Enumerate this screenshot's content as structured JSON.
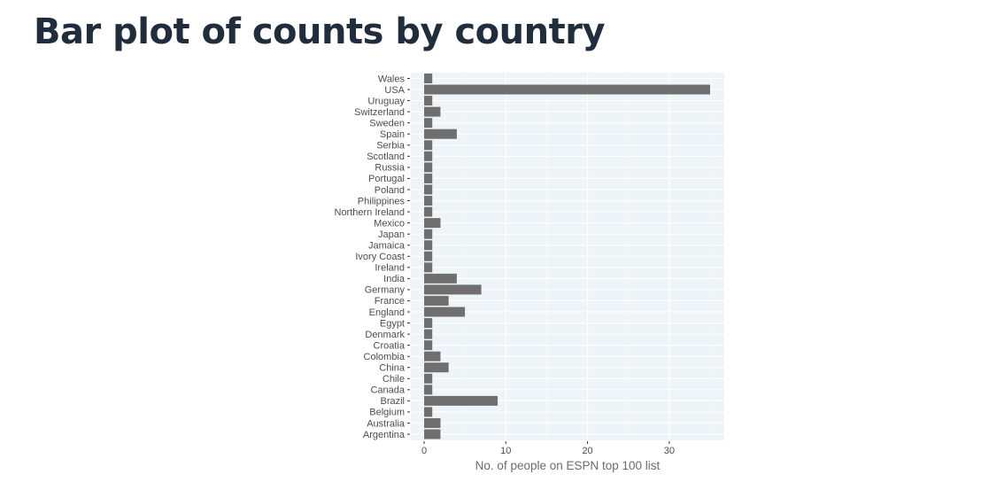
{
  "slide": {
    "title": "Bar plot of counts by country"
  },
  "colors": {
    "title": "#1f2d3d",
    "panel_background": "#eef4f8",
    "gridline": "#ffffff",
    "bar_fill": "#6f6f6f",
    "axis_text": "#4d4d4d",
    "axis_title": "#6b6b6b"
  },
  "chart_data": {
    "type": "bar",
    "orientation": "horizontal",
    "title": "",
    "xlabel": "No. of people on ESPN top 100 list",
    "ylabel": "",
    "xlim": [
      0,
      36.75
    ],
    "x_ticks": [
      0,
      10,
      20,
      30
    ],
    "grid": true,
    "legend": "none",
    "categories": [
      "Wales",
      "USA",
      "Uruguay",
      "Switzerland",
      "Sweden",
      "Spain",
      "Serbia",
      "Scotland",
      "Russia",
      "Portugal",
      "Poland",
      "Philippines",
      "Northern Ireland",
      "Mexico",
      "Japan",
      "Jamaica",
      "Ivory Coast",
      "Ireland",
      "India",
      "Germany",
      "France",
      "England",
      "Egypt",
      "Denmark",
      "Croatia",
      "Colombia",
      "China",
      "Chile",
      "Canada",
      "Brazil",
      "Belgium",
      "Australia",
      "Argentina"
    ],
    "values": [
      1,
      35,
      1,
      2,
      1,
      4,
      1,
      1,
      1,
      1,
      1,
      1,
      1,
      2,
      1,
      1,
      1,
      1,
      4,
      7,
      3,
      5,
      1,
      1,
      1,
      2,
      3,
      1,
      1,
      9,
      1,
      2,
      2
    ]
  }
}
